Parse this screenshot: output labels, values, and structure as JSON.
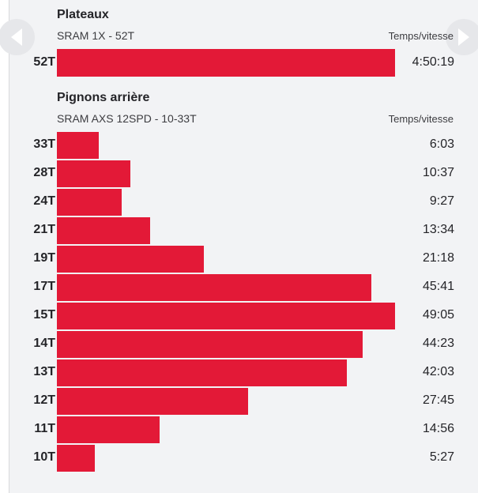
{
  "nav": {
    "prev_icon": "chevron-left-icon",
    "next_icon": "chevron-right-icon"
  },
  "chart_data": [
    {
      "type": "bar",
      "orientation": "horizontal",
      "title": "Plateaux",
      "subtitle": "SRAM 1X - 52T",
      "value_header": "Temps/vitesse",
      "categories": [
        "52T"
      ],
      "values": [
        17419
      ],
      "value_labels": [
        "4:50:19"
      ],
      "xlim": [
        0,
        17419
      ],
      "color": "#e31937",
      "grid": false
    },
    {
      "type": "bar",
      "orientation": "horizontal",
      "title": "Pignons arrière",
      "subtitle": "SRAM AXS 12SPD - 10-33T",
      "value_header": "Temps/vitesse",
      "categories": [
        "33T",
        "28T",
        "24T",
        "21T",
        "19T",
        "17T",
        "15T",
        "14T",
        "13T",
        "12T",
        "11T",
        "10T"
      ],
      "values": [
        363,
        637,
        567,
        814,
        1278,
        2741,
        2945,
        2663,
        2523,
        1665,
        896,
        327
      ],
      "value_labels": [
        "6:03",
        "10:37",
        "9:27",
        "13:34",
        "21:18",
        "45:41",
        "49:05",
        "44:23",
        "42:03",
        "27:45",
        "14:56",
        "5:27"
      ],
      "xlim": [
        0,
        2945
      ],
      "color": "#e31937",
      "grid": false
    }
  ]
}
